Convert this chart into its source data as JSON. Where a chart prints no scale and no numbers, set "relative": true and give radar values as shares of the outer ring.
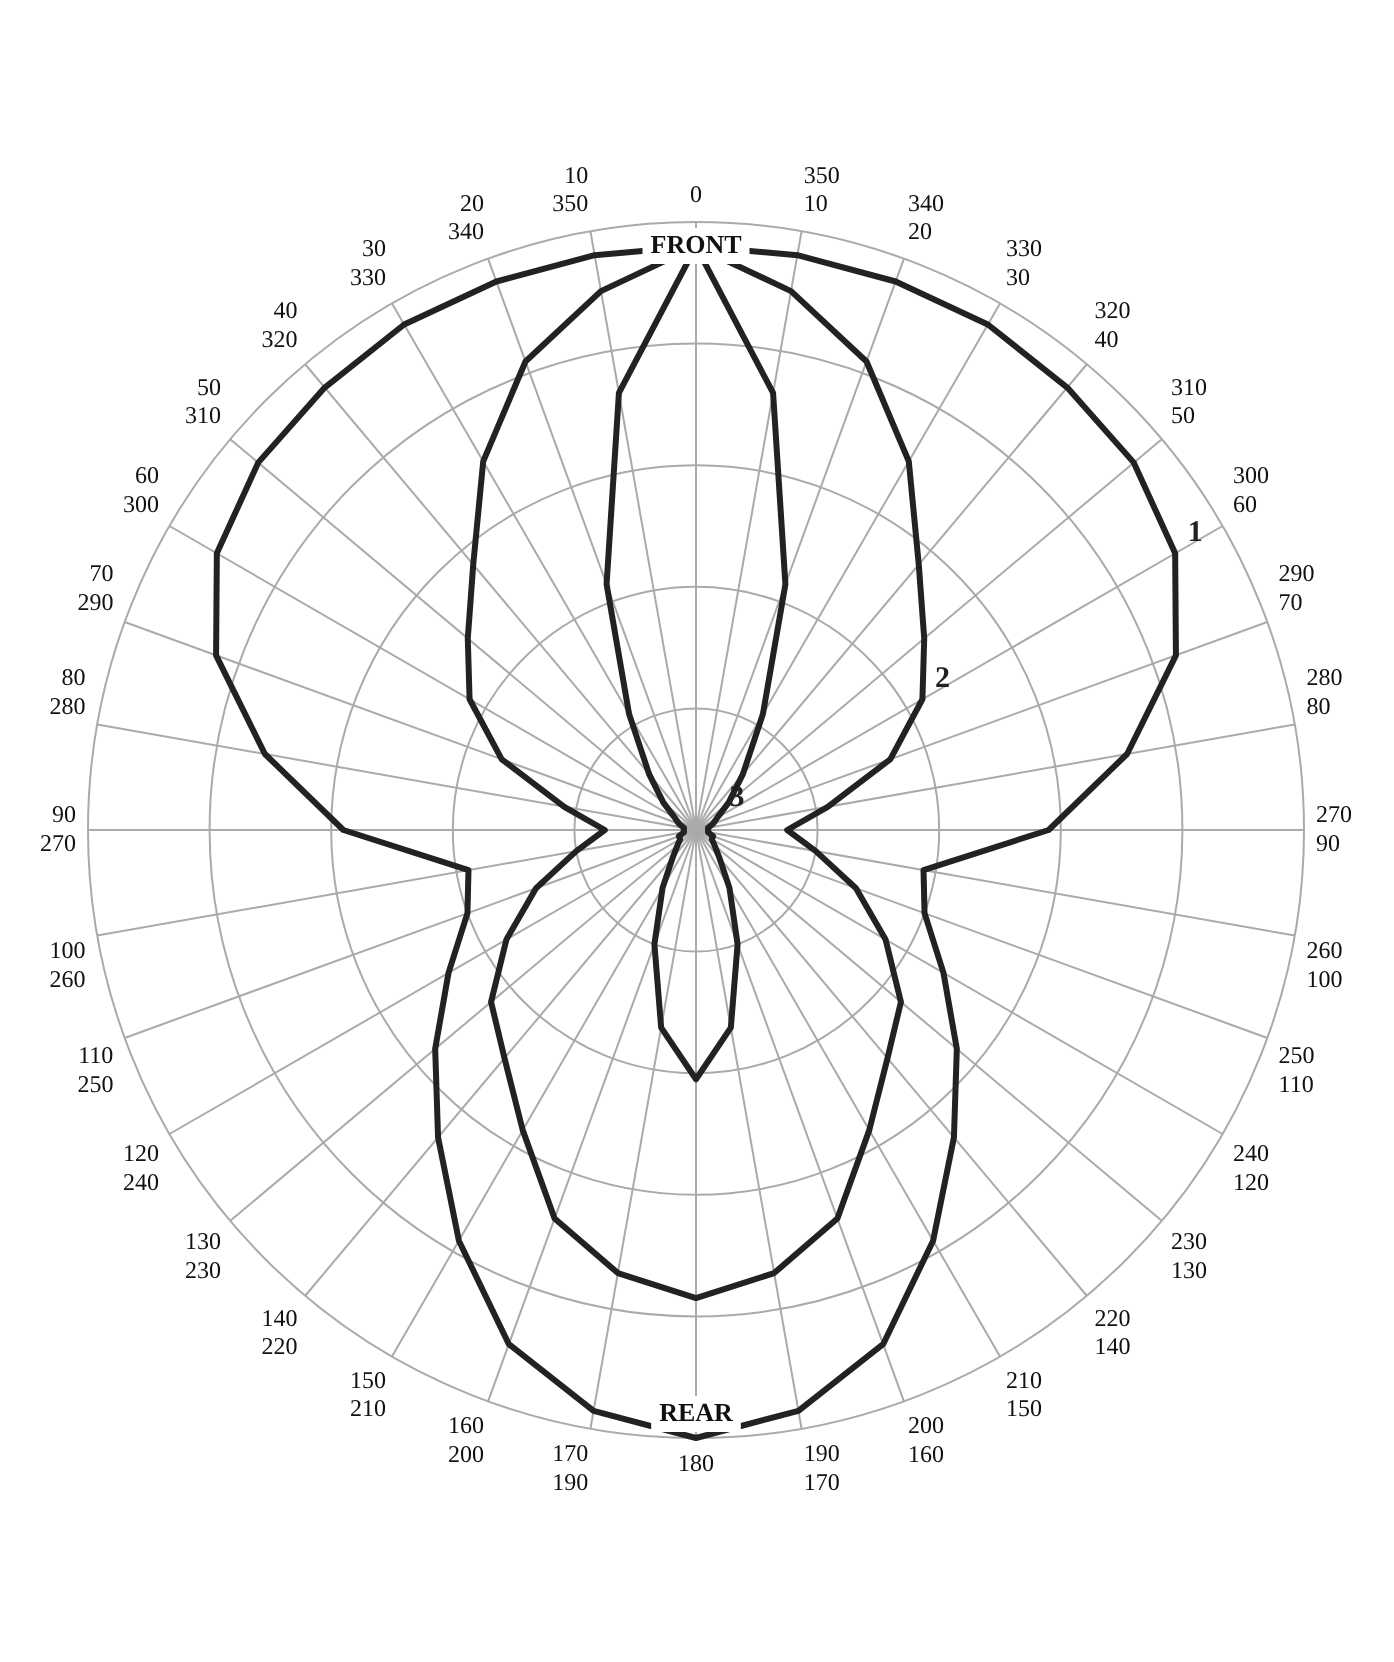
{
  "chart_data": {
    "type": "radar",
    "relative": true,
    "grid": true,
    "marker": "none",
    "line_style": "solid",
    "legend": false,
    "categories": [
      "0",
      "350 10",
      "340 20",
      "330 30",
      "320 40",
      "310 50",
      "300 60",
      "290 70",
      "280 80",
      "270 90",
      "260 100",
      "250 110",
      "240 120",
      "230 130",
      "220 140",
      "210 150",
      "200 160",
      "190 170",
      "180",
      "170 190",
      "160 200",
      "150 210",
      "140 220",
      "130 230",
      "120 240",
      "110 250",
      "100 260",
      "90 270",
      "80 280",
      "70 290",
      "60 300",
      "50 310",
      "40 320",
      "30 330",
      "20 340",
      "10 350"
    ],
    "series": [
      {
        "name": "1",
        "color": "#222222",
        "values": [
          0.96,
          0.96,
          0.96,
          0.96,
          0.95,
          0.94,
          0.91,
          0.84,
          0.72,
          0.58,
          0.38,
          0.4,
          0.47,
          0.56,
          0.66,
          0.78,
          0.9,
          0.97,
          1.0,
          0.97,
          0.9,
          0.78,
          0.66,
          0.56,
          0.47,
          0.4,
          0.38,
          0.58,
          0.72,
          0.84,
          0.91,
          0.94,
          0.95,
          0.96,
          0.96,
          0.96
        ]
      },
      {
        "name": "2",
        "color": "#222222",
        "values": [
          0.96,
          0.9,
          0.82,
          0.7,
          0.57,
          0.49,
          0.43,
          0.34,
          0.22,
          0.15,
          0.2,
          0.28,
          0.36,
          0.44,
          0.49,
          0.57,
          0.68,
          0.74,
          0.77,
          0.74,
          0.68,
          0.57,
          0.49,
          0.44,
          0.36,
          0.28,
          0.2,
          0.15,
          0.22,
          0.34,
          0.43,
          0.49,
          0.57,
          0.7,
          0.82,
          0.9
        ]
      },
      {
        "name": "3",
        "color": "#222222",
        "values": [
          0.96,
          0.73,
          0.43,
          0.22,
          0.12,
          0.07,
          0.04,
          0.03,
          0.02,
          0.02,
          0.02,
          0.03,
          0.03,
          0.04,
          0.06,
          0.11,
          0.2,
          0.33,
          0.41,
          0.33,
          0.2,
          0.11,
          0.06,
          0.04,
          0.03,
          0.03,
          0.02,
          0.02,
          0.02,
          0.03,
          0.04,
          0.07,
          0.12,
          0.22,
          0.43,
          0.73
        ]
      }
    ],
    "annotations": [
      "FRONT",
      "REAR"
    ]
  }
}
